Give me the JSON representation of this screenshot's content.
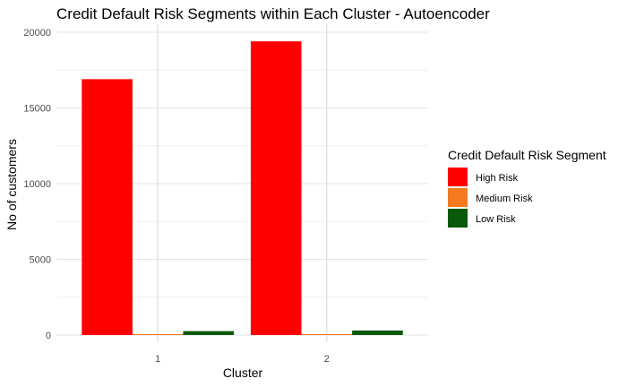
{
  "chart_data": {
    "type": "bar",
    "title": "Credit Default Risk Segments within Each Cluster - Autoencoder",
    "xlabel": "Cluster",
    "ylabel": "No of customers",
    "categories": [
      "1",
      "2"
    ],
    "series": [
      {
        "name": "High Risk",
        "color": "#ff0000",
        "values": [
          16900,
          19400
        ]
      },
      {
        "name": "Medium Risk",
        "color": "#f47a1f",
        "values": [
          40,
          50
        ]
      },
      {
        "name": "Low Risk",
        "color": "#0b5a0b",
        "values": [
          260,
          300
        ]
      }
    ],
    "ylim": [
      0,
      20000
    ],
    "yticks": [
      0,
      5000,
      10000,
      15000,
      20000
    ],
    "grid": true,
    "legend": {
      "title": "Credit Default Risk Segment",
      "position": "right"
    }
  }
}
